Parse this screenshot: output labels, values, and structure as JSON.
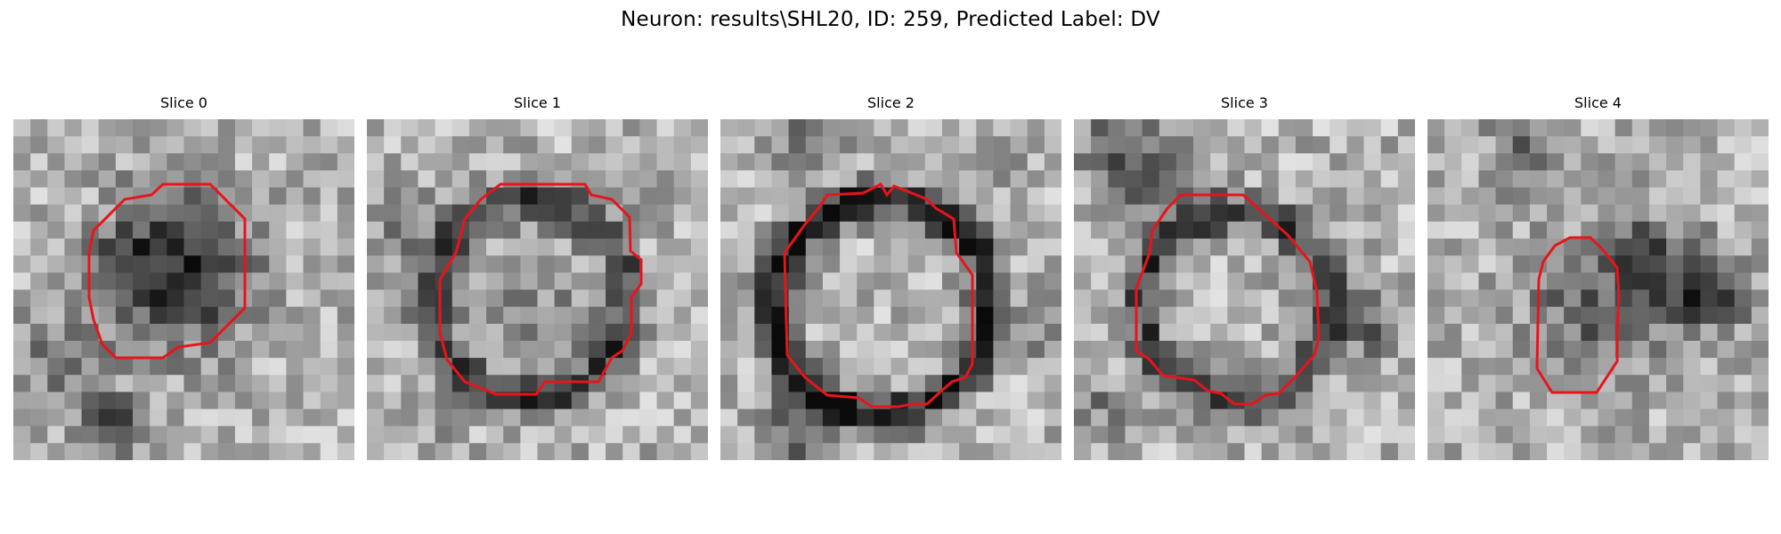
{
  "figure": {
    "title": "Neuron: results\\SHL20, ID: 259, Predicted Label: DV",
    "colormap": "gray",
    "contour_color": "#e8141c"
  },
  "slices": [
    {
      "label": "Slice 0"
    },
    {
      "label": "Slice 1"
    },
    {
      "label": "Slice 2"
    },
    {
      "label": "Slice 3"
    },
    {
      "label": "Slice 4"
    }
  ]
}
